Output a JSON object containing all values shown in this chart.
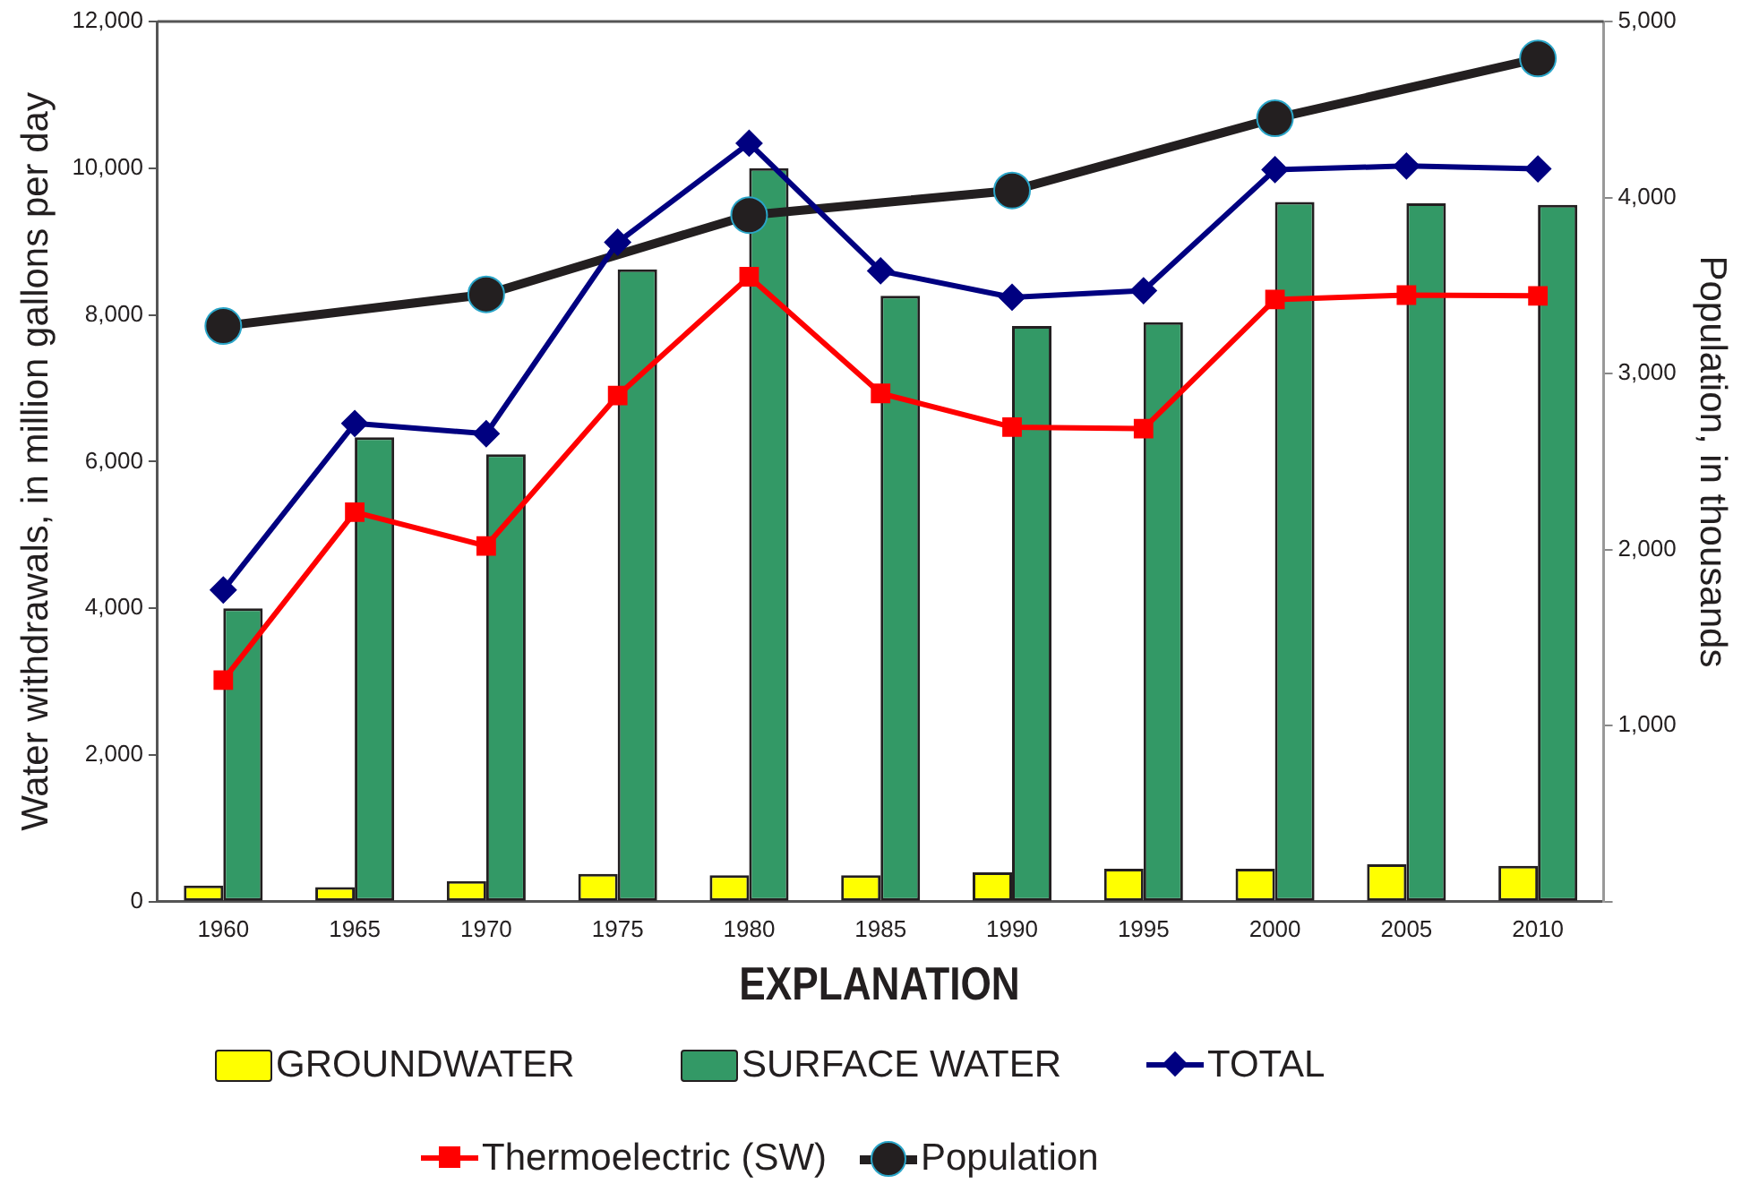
{
  "chart_data": {
    "type": "bar",
    "ylabel": "Water withdrawals, in million gallons per day",
    "y2label": "Population, in thousands",
    "legend_title": "EXPLANATION",
    "legend": "bottom",
    "grid": false,
    "categories": [
      "1960",
      "1965",
      "1970",
      "1975",
      "1980",
      "1985",
      "1990",
      "1995",
      "2000",
      "2005",
      "2010"
    ],
    "ylim": [
      0,
      12000
    ],
    "yticks": [
      {
        "value": 0,
        "label": "0"
      },
      {
        "value": 2000,
        "label": "2,000"
      },
      {
        "value": 4000,
        "label": "4,000"
      },
      {
        "value": 6000,
        "label": "6,000"
      },
      {
        "value": 8000,
        "label": "8,000"
      },
      {
        "value": 10000,
        "label": "10,000"
      },
      {
        "value": 12000,
        "label": "12,000"
      }
    ],
    "y2lim": [
      0,
      5000
    ],
    "y2ticks": [
      {
        "value": 0,
        "label": null
      },
      {
        "value": 1000,
        "label": "1,000"
      },
      {
        "value": 2000,
        "label": "2,000"
      },
      {
        "value": 3000,
        "label": "3,000"
      },
      {
        "value": 4000,
        "label": "4,000"
      },
      {
        "value": 5000,
        "label": "5,000"
      }
    ],
    "series": [
      {
        "name": "GROUNDWATER",
        "color": "#ffff00",
        "values": [
          220,
          200,
          280,
          380,
          360,
          360,
          400,
          450,
          450,
          510,
          490
        ]
      },
      {
        "name": "SURFACE WATER",
        "color": "#339966",
        "values": [
          4000,
          6330,
          6100,
          8620,
          10000,
          8260,
          7850,
          7900,
          9540,
          9520,
          9500
        ]
      },
      {
        "name": "TOTAL",
        "type": "line",
        "color": "#000080",
        "marker": "diamond",
        "values": [
          4250,
          6520,
          6380,
          8990,
          10340,
          8600,
          8240,
          8330,
          9980,
          10030,
          9990
        ]
      },
      {
        "name": "Thermoelectric (SW)",
        "type": "line",
        "color": "#ff0000",
        "marker": "square",
        "values": [
          3020,
          5310,
          4850,
          6900,
          8520,
          6930,
          6470,
          6450,
          8210,
          8270,
          8260
        ]
      },
      {
        "name": "Population",
        "type": "line",
        "axis": "y2",
        "color": "#231f20",
        "marker": "circle",
        "values": [
          3270,
          null,
          3450,
          null,
          3900,
          null,
          4040,
          null,
          4450,
          null,
          4790
        ]
      }
    ]
  }
}
